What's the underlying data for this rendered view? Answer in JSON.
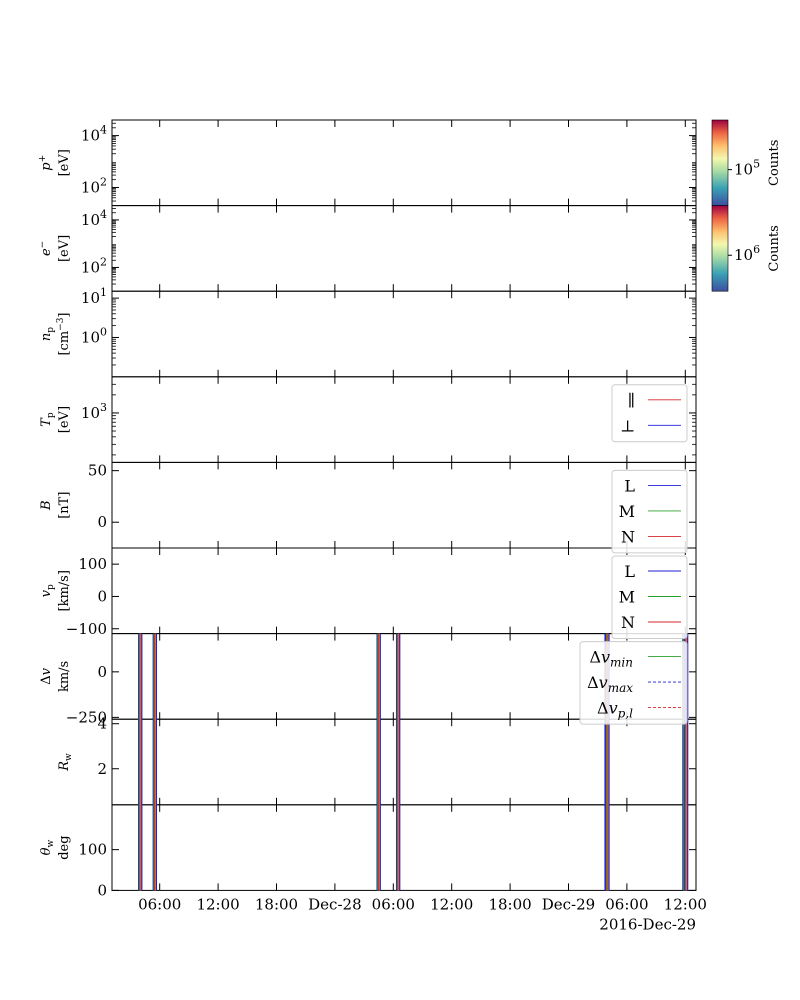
{
  "chart_data": {
    "type": "line",
    "x_axis": {
      "range": [
        "2016-12-27T01:06",
        "2016-12-29T13:06"
      ],
      "ticks": [
        {
          "t": "2016-12-27T06:00",
          "label": "06:00"
        },
        {
          "t": "2016-12-27T12:00",
          "label": "12:00"
        },
        {
          "t": "2016-12-27T18:00",
          "label": "18:00"
        },
        {
          "t": "2016-12-28T00:00",
          "label": "Dec-28"
        },
        {
          "t": "2016-12-28T06:00",
          "label": "06:00"
        },
        {
          "t": "2016-12-28T12:00",
          "label": "12:00"
        },
        {
          "t": "2016-12-28T18:00",
          "label": "18:00"
        },
        {
          "t": "2016-12-29T00:00",
          "label": "Dec-29"
        },
        {
          "t": "2016-12-29T06:00",
          "label": "06:00"
        },
        {
          "t": "2016-12-29T12:00",
          "label": "12:00"
        }
      ],
      "date_label": "2016-Dec-29"
    },
    "events": [
      {
        "start": "2016-12-27T04:00",
        "end": "2016-12-27T05:30"
      },
      {
        "start": "2016-12-28T04:30",
        "end": "2016-12-28T06:30"
      },
      {
        "start": "2016-12-29T03:55",
        "end": "2016-12-29T04:00"
      },
      {
        "start": "2016-12-29T11:55",
        "end": "2016-12-29T12:05"
      }
    ],
    "panels": [
      {
        "id": "proton-spectrogram",
        "ylabel": "$p^+$",
        "yunit": "[eV]",
        "yscale": "log",
        "ylim": [
          20,
          40000
        ],
        "yticks": [
          {
            "v": 100,
            "label": "10",
            "exp": "2"
          },
          {
            "v": 10000,
            "label": "10",
            "exp": "4"
          }
        ],
        "colorbar": {
          "label": "Counts",
          "tick": {
            "label": "10",
            "exp": "5"
          },
          "scale": "log"
        }
      },
      {
        "id": "electron-spectrogram",
        "ylabel": "$e^-$",
        "yunit": "[eV]",
        "yscale": "log",
        "ylim": [
          10,
          40000
        ],
        "yticks": [
          {
            "v": 100,
            "label": "10",
            "exp": "2"
          },
          {
            "v": 10000,
            "label": "10",
            "exp": "4"
          }
        ],
        "colorbar": {
          "label": "Counts",
          "tick": {
            "label": "10",
            "exp": "6"
          },
          "scale": "log"
        }
      },
      {
        "id": "proton-density",
        "ylabel": "$n_p$",
        "yunit": "[cm$^{-3}$]",
        "yscale": "log",
        "ylim": [
          0.1,
          15
        ],
        "yticks": [
          {
            "v": 1,
            "label": "10",
            "exp": "0"
          },
          {
            "v": 10,
            "label": "10",
            "exp": "1"
          }
        ]
      },
      {
        "id": "proton-temperature",
        "ylabel": "$T_p$",
        "yunit": "[eV]",
        "yscale": "log",
        "ylim": [
          150,
          4000
        ],
        "yticks": [
          {
            "v": 1000,
            "label": "10",
            "exp": "3"
          }
        ],
        "legend": [
          "∥",
          "⊥"
        ],
        "legend_colors": [
          "#d62728",
          "#1f1fd6"
        ]
      },
      {
        "id": "magnetic-field",
        "ylabel": "$B$",
        "yunit": "[nT]",
        "yscale": "linear",
        "ylim": [
          -25,
          58
        ],
        "yticks": [
          {
            "v": 0,
            "label": "0"
          },
          {
            "v": 50,
            "label": "50"
          }
        ],
        "legend": [
          "L",
          "M",
          "N"
        ],
        "legend_colors": [
          "#1f1fd6",
          "#2ca02c",
          "#d62728"
        ]
      },
      {
        "id": "proton-velocity",
        "ylabel": "$v_p$",
        "yunit": "[km/s]",
        "yscale": "linear",
        "ylim": [
          -115,
          150
        ],
        "yticks": [
          {
            "v": -100,
            "label": "−100"
          },
          {
            "v": 0,
            "label": "0"
          },
          {
            "v": 100,
            "label": "100"
          }
        ],
        "legend": [
          "L",
          "M",
          "N"
        ],
        "legend_colors": [
          "#1f1fd6",
          "#2ca02c",
          "#d62728"
        ]
      },
      {
        "id": "delta-v",
        "ylabel": "$\\Delta v$",
        "yunit": "km/s",
        "yscale": "linear",
        "ylim": [
          -260,
          210
        ],
        "yticks": [
          {
            "v": 0,
            "label": "0"
          },
          {
            "v": -250,
            "label": "−250"
          }
        ],
        "legend": [
          "Δv_min",
          "Δv_max",
          "Δv_p,l"
        ],
        "legend_colors": [
          "#2ca02c",
          "#1f1fd6",
          "#d62728"
        ]
      },
      {
        "id": "walen-ratio",
        "ylabel": "$R_w$",
        "yunit": "",
        "yscale": "linear",
        "ylim": [
          0.4,
          4.2
        ],
        "yticks": [
          {
            "v": 2,
            "label": "2"
          },
          {
            "v": 4,
            "label": "4"
          }
        ]
      },
      {
        "id": "walen-angle",
        "ylabel": "$\\theta_w$",
        "yunit": "deg",
        "yscale": "linear",
        "ylim": [
          0,
          210
        ],
        "yticks": [
          {
            "v": 0,
            "label": "0"
          },
          {
            "v": 100,
            "label": "100"
          }
        ]
      }
    ]
  }
}
